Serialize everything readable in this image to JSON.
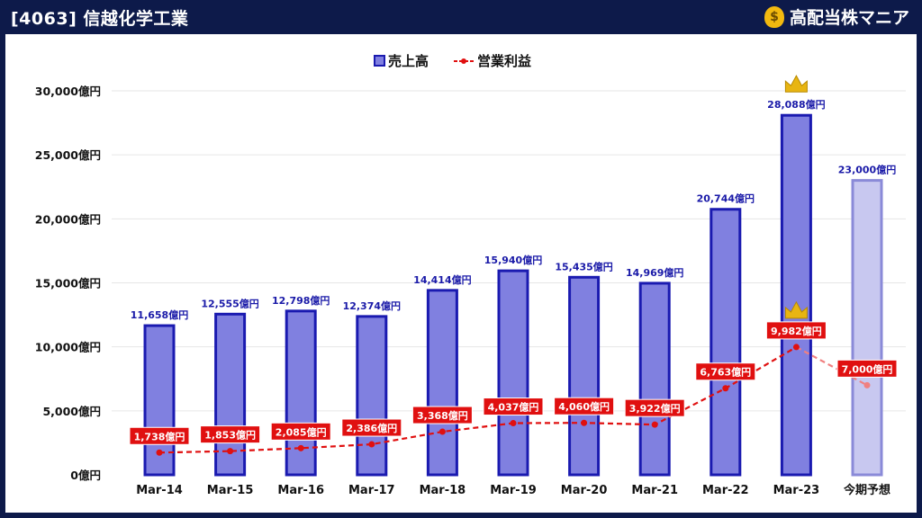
{
  "header": {
    "title": "[4063] 信越化学工業",
    "brand": "高配当株マニア",
    "brand_icon": "money-bag-icon"
  },
  "chart_data": {
    "type": "bar",
    "categories": [
      "Mar-14",
      "Mar-15",
      "Mar-16",
      "Mar-17",
      "Mar-18",
      "Mar-19",
      "Mar-20",
      "Mar-21",
      "Mar-22",
      "Mar-23",
      "今期予想"
    ],
    "ylim": [
      0,
      30000
    ],
    "yticks": [
      0,
      5000,
      10000,
      15000,
      20000,
      25000,
      30000
    ],
    "ytick_labels": [
      "0億円",
      "5,000億円",
      "10,000億円",
      "15,000億円",
      "20,000億円",
      "25,000億円",
      "30,000億円"
    ],
    "legend_position": "top-center",
    "grid": true,
    "series": [
      {
        "name": "売上高",
        "type": "bar",
        "values": [
          11658,
          12555,
          12798,
          12374,
          14414,
          15940,
          15435,
          14969,
          20744,
          28088,
          23000
        ],
        "labels": [
          "11,658億円",
          "12,555億円",
          "12,798億円",
          "12,374億円",
          "14,414億円",
          "15,940億円",
          "15,435億円",
          "14,969億円",
          "20,744億円",
          "28,088億円",
          "23,000億円"
        ],
        "color": "#8080e0",
        "border": "#1a1ab0",
        "forecast_color": "#c8c8f0",
        "label_color": "#1a1aa8"
      },
      {
        "name": "営業利益",
        "type": "line",
        "values": [
          1738,
          1853,
          2085,
          2386,
          3368,
          4037,
          4060,
          3922,
          6763,
          9982,
          7000
        ],
        "labels": [
          "1,738億円",
          "1,853億円",
          "2,085億円",
          "2,386億円",
          "3,368億円",
          "4,037億円",
          "4,060億円",
          "3,922億円",
          "6,763億円",
          "9,982億円",
          "7,000億円"
        ],
        "color": "#e01010",
        "forecast_color": "#f08080"
      }
    ],
    "crown_icon": "crown-icon",
    "crown_index": 9
  }
}
